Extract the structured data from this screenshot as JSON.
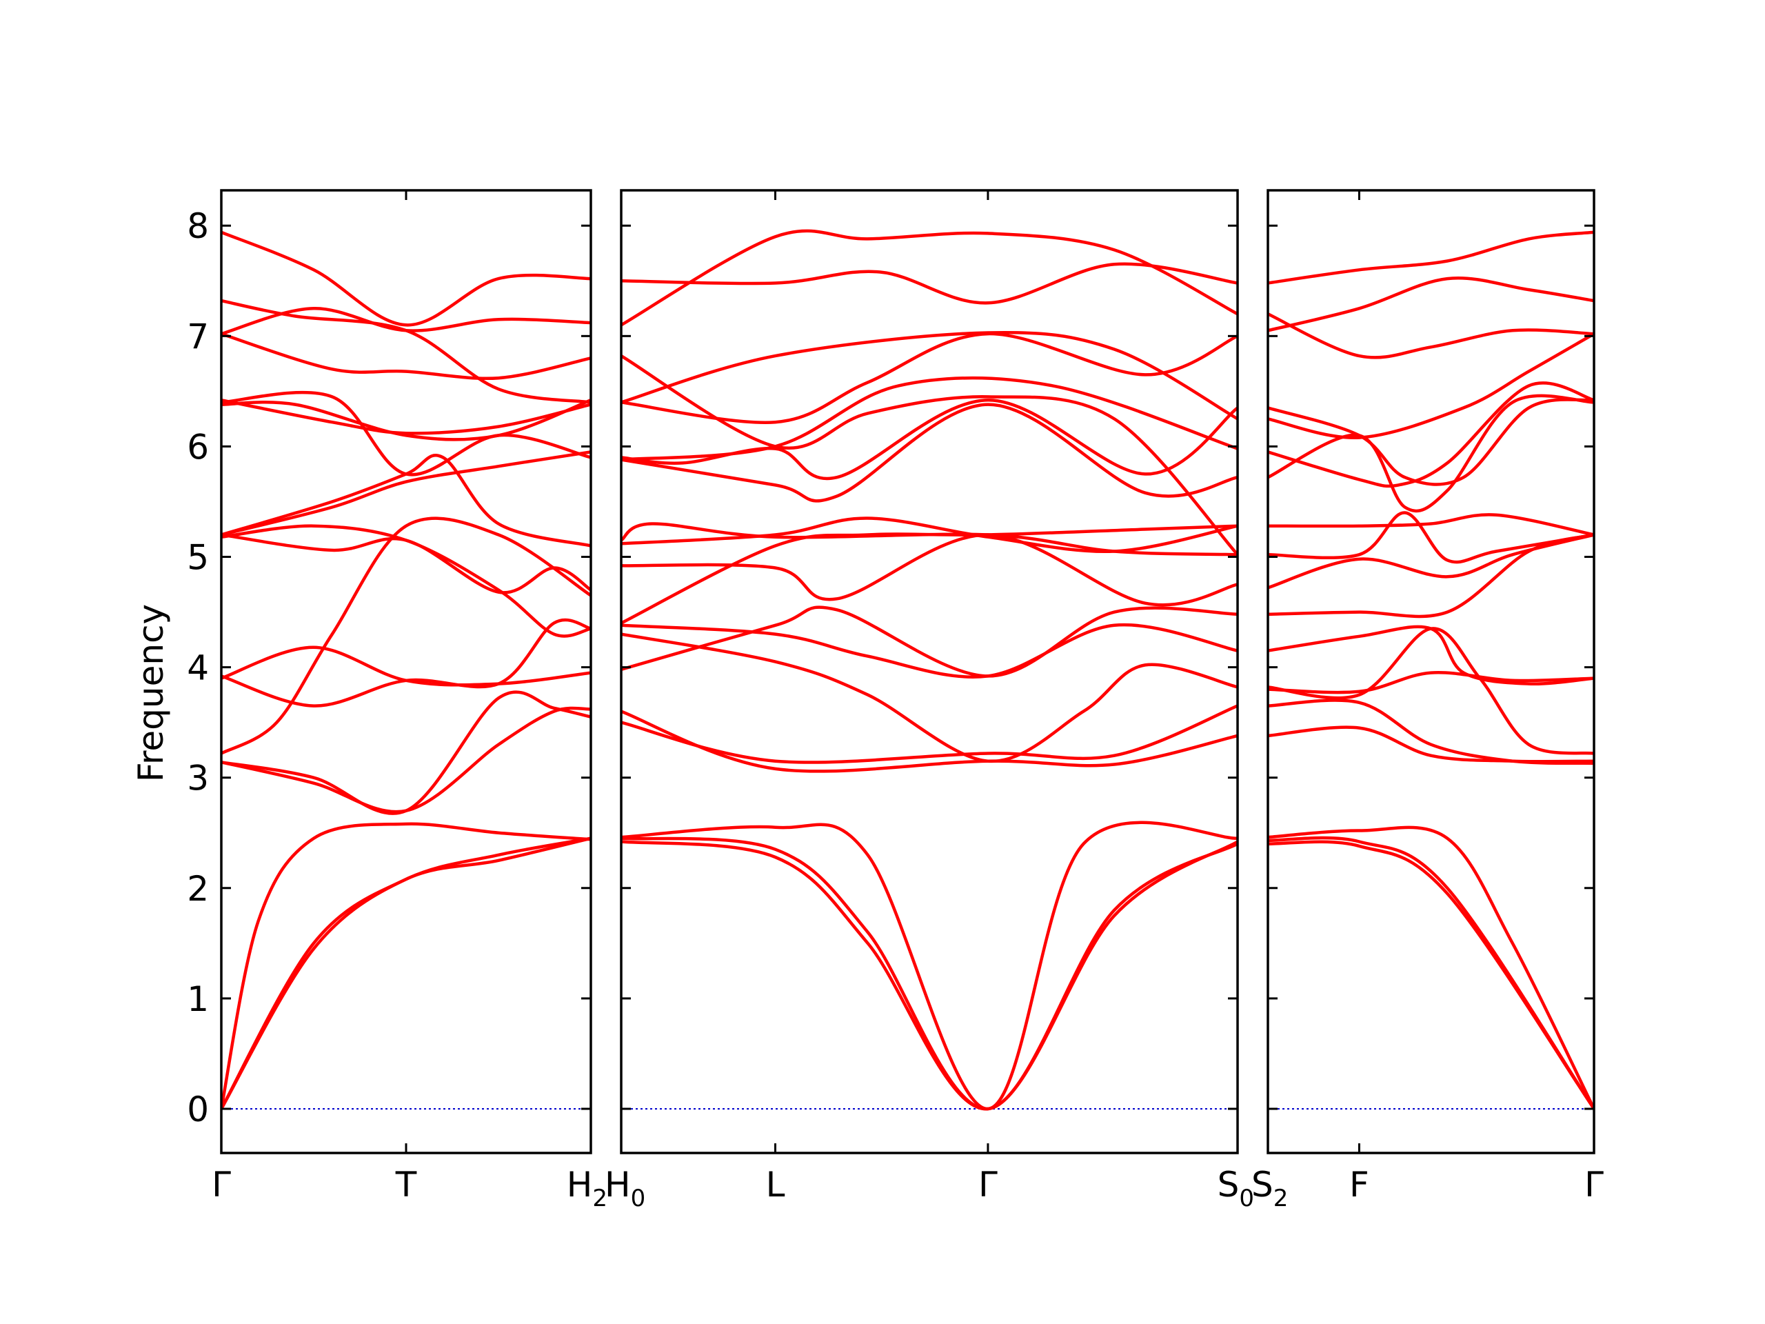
{
  "chart_data": {
    "type": "line",
    "ylabel": "Frequency",
    "ylim": [
      -0.4,
      8.32
    ],
    "yticks": [
      0,
      1,
      2,
      3,
      4,
      5,
      6,
      7,
      8
    ],
    "grid": false,
    "line_color": "#ff0000",
    "zero_line_color": "#0000cc",
    "panels": [
      {
        "xticks": [
          {
            "label": "Γ",
            "sub": "",
            "x": 0
          },
          {
            "label": "T",
            "sub": "",
            "x": 0.5
          },
          {
            "label": "H",
            "sub": "2",
            "x": 1
          }
        ],
        "bands": [
          {
            "x": [
              0,
              0.25,
              0.5,
              0.75,
              1
            ],
            "y": [
              0,
              1.5,
              2.08,
              2.3,
              2.45
            ]
          },
          {
            "x": [
              0,
              0.25,
              0.5,
              0.75,
              1
            ],
            "y": [
              0,
              1.45,
              2.08,
              2.25,
              2.45
            ]
          },
          {
            "x": [
              0,
              0.1,
              0.25,
              0.5,
              0.75,
              1
            ],
            "y": [
              0,
              1.7,
              2.45,
              2.58,
              2.5,
              2.44
            ]
          },
          {
            "x": [
              0,
              0.25,
              0.5,
              0.75,
              0.9,
              1
            ],
            "y": [
              3.14,
              3.0,
              2.7,
              3.72,
              3.63,
              3.55
            ]
          },
          {
            "x": [
              0,
              0.25,
              0.5,
              0.75,
              0.9,
              1
            ],
            "y": [
              3.14,
              2.95,
              2.7,
              3.3,
              3.6,
              3.62
            ]
          },
          {
            "x": [
              0,
              0.15,
              0.3,
              0.5,
              0.75,
              1
            ],
            "y": [
              3.22,
              3.5,
              4.3,
              5.28,
              5.2,
              4.65
            ]
          },
          {
            "x": [
              0,
              0.25,
              0.5,
              0.75,
              1
            ],
            "y": [
              3.9,
              4.18,
              3.88,
              3.85,
              3.95
            ]
          },
          {
            "x": [
              0,
              0.25,
              0.5,
              0.75,
              0.9,
              1
            ],
            "y": [
              3.92,
              3.65,
              3.88,
              3.85,
              4.4,
              4.35
            ]
          },
          {
            "x": [
              0,
              0.25,
              0.5,
              0.75,
              0.9,
              1
            ],
            "y": [
              5.18,
              5.28,
              5.15,
              4.7,
              4.3,
              4.35
            ]
          },
          {
            "x": [
              0,
              0.3,
              0.5,
              0.75,
              0.9,
              1
            ],
            "y": [
              5.2,
              5.06,
              5.15,
              4.68,
              4.9,
              4.7
            ]
          },
          {
            "x": [
              0,
              0.3,
              0.5,
              0.6,
              0.75,
              1
            ],
            "y": [
              5.2,
              5.5,
              5.75,
              5.9,
              5.3,
              5.1
            ]
          },
          {
            "x": [
              0,
              0.3,
              0.5,
              0.75,
              1
            ],
            "y": [
              5.2,
              5.45,
              5.68,
              5.82,
              5.95
            ]
          },
          {
            "x": [
              0,
              0.3,
              0.5,
              0.75,
              1
            ],
            "y": [
              6.4,
              6.45,
              5.75,
              6.1,
              5.9
            ]
          },
          {
            "x": [
              0,
              0.3,
              0.5,
              0.75,
              1
            ],
            "y": [
              6.42,
              6.22,
              6.12,
              6.18,
              6.38
            ]
          },
          {
            "x": [
              0,
              0.2,
              0.5,
              0.75,
              1
            ],
            "y": [
              6.38,
              6.38,
              6.1,
              6.1,
              6.42
            ]
          },
          {
            "x": [
              0,
              0.3,
              0.5,
              0.75,
              1
            ],
            "y": [
              7.02,
              6.7,
              6.68,
              6.62,
              6.8
            ]
          },
          {
            "x": [
              0,
              0.2,
              0.5,
              0.75,
              1
            ],
            "y": [
              7.32,
              7.18,
              7.05,
              6.52,
              6.4
            ]
          },
          {
            "x": [
              0,
              0.25,
              0.5,
              0.75,
              1
            ],
            "y": [
              7.02,
              7.25,
              7.05,
              7.15,
              7.12
            ]
          },
          {
            "x": [
              0,
              0.25,
              0.5,
              0.75,
              1
            ],
            "y": [
              7.94,
              7.6,
              7.1,
              7.52,
              7.52
            ]
          }
        ]
      },
      {
        "xticks": [
          {
            "label": "H",
            "sub": "0",
            "x": 0
          },
          {
            "label": "L",
            "sub": "",
            "x": 0.25
          },
          {
            "label": "Γ",
            "sub": "",
            "x": 0.595
          },
          {
            "label": "S",
            "sub": "0",
            "x": 1
          }
        ],
        "bands": [
          {
            "x": [
              0,
              0.25,
              0.4,
              0.595,
              0.8,
              1
            ],
            "y": [
              2.42,
              2.28,
              1.5,
              0,
              1.75,
              2.42
            ]
          },
          {
            "x": [
              0,
              0.25,
              0.4,
              0.595,
              0.8,
              1
            ],
            "y": [
              2.45,
              2.35,
              1.6,
              0,
              1.8,
              2.4
            ]
          },
          {
            "x": [
              0,
              0.25,
              0.4,
              0.595,
              0.75,
              1
            ],
            "y": [
              2.46,
              2.55,
              2.3,
              0,
              2.4,
              2.45
            ]
          },
          {
            "x": [
              0,
              0.25,
              0.595,
              0.8,
              1
            ],
            "y": [
              3.6,
              3.08,
              3.15,
              3.12,
              3.38
            ]
          },
          {
            "x": [
              0,
              0.25,
              0.595,
              0.8,
              1
            ],
            "y": [
              3.5,
              3.15,
              3.22,
              3.2,
              3.65
            ]
          },
          {
            "x": [
              0,
              0.25,
              0.4,
              0.595,
              0.75,
              0.85,
              1
            ],
            "y": [
              4.3,
              4.05,
              3.75,
              3.15,
              3.6,
              4.02,
              3.82
            ]
          },
          {
            "x": [
              0,
              0.25,
              0.35,
              0.595,
              0.8,
              1
            ],
            "y": [
              3.98,
              4.38,
              4.52,
              3.92,
              4.5,
              4.48
            ]
          },
          {
            "x": [
              0,
              0.25,
              0.4,
              0.595,
              0.8,
              1
            ],
            "y": [
              4.38,
              4.3,
              4.1,
              3.92,
              4.38,
              4.15
            ]
          },
          {
            "x": [
              0,
              0.25,
              0.35,
              0.595,
              0.85,
              1
            ],
            "y": [
              4.92,
              4.9,
              4.62,
              5.2,
              4.58,
              4.75
            ]
          },
          {
            "x": [
              0,
              0.25,
              0.4,
              0.595,
              0.85,
              1
            ],
            "y": [
              4.4,
              5.1,
              5.2,
              5.2,
              5.25,
              5.28
            ]
          },
          {
            "x": [
              0,
              0.05,
              0.25,
              0.595,
              0.8,
              1
            ],
            "y": [
              5.15,
              5.3,
              5.18,
              5.2,
              5.05,
              5.02
            ]
          },
          {
            "x": [
              0,
              0.25,
              0.4,
              0.595,
              0.8,
              1
            ],
            "y": [
              5.12,
              5.2,
              5.35,
              5.18,
              5.05,
              5.28
            ]
          },
          {
            "x": [
              0,
              0.25,
              0.35,
              0.595,
              0.85,
              1
            ],
            "y": [
              5.88,
              5.65,
              5.55,
              6.38,
              5.58,
              5.72
            ]
          },
          {
            "x": [
              0,
              0.1,
              0.25,
              0.35,
              0.595,
              0.85,
              1
            ],
            "y": [
              5.9,
              5.85,
              5.98,
              5.72,
              6.42,
              5.75,
              6.35
            ]
          },
          {
            "x": [
              0,
              0.25,
              0.45,
              0.7,
              1
            ],
            "y": [
              5.88,
              6.0,
              6.55,
              6.55,
              5.98
            ]
          },
          {
            "x": [
              0,
              0.25,
              0.4,
              0.595,
              0.85,
              1
            ],
            "y": [
              6.4,
              6.22,
              6.58,
              7.02,
              6.65,
              7.0
            ]
          },
          {
            "x": [
              0,
              0.25,
              0.595,
              0.8,
              1
            ],
            "y": [
              6.4,
              6.82,
              7.03,
              6.88,
              6.25
            ]
          },
          {
            "x": [
              0,
              0.25,
              0.4,
              0.595,
              0.8,
              1
            ],
            "y": [
              6.82,
              6.0,
              6.3,
              6.45,
              6.25,
              5.02
            ]
          },
          {
            "x": [
              0,
              0.25,
              0.42,
              0.595,
              0.8,
              1
            ],
            "y": [
              7.5,
              7.48,
              7.58,
              7.3,
              7.65,
              7.48
            ]
          },
          {
            "x": [
              0,
              0.25,
              0.4,
              0.595,
              0.8,
              1
            ],
            "y": [
              7.1,
              7.9,
              7.88,
              7.93,
              7.78,
              7.2
            ]
          }
        ]
      },
      {
        "xticks": [
          {
            "label": "S",
            "sub": "2",
            "x": 0
          },
          {
            "label": "F",
            "sub": "",
            "x": 0.28
          },
          {
            "label": "Γ",
            "sub": "",
            "x": 1
          }
        ],
        "bands": [
          {
            "x": [
              0,
              0.28,
              0.55,
              1
            ],
            "y": [
              2.4,
              2.38,
              1.95,
              0
            ]
          },
          {
            "x": [
              0,
              0.28,
              0.55,
              1
            ],
            "y": [
              2.43,
              2.42,
              2.0,
              0
            ]
          },
          {
            "x": [
              0,
              0.28,
              0.55,
              0.75,
              1
            ],
            "y": [
              2.46,
              2.52,
              2.45,
              1.5,
              0
            ]
          },
          {
            "x": [
              0,
              0.28,
              0.5,
              0.75,
              1
            ],
            "y": [
              3.38,
              3.45,
              3.2,
              3.15,
              3.15
            ]
          },
          {
            "x": [
              0,
              0.28,
              0.5,
              0.75,
              1
            ],
            "y": [
              3.65,
              3.68,
              3.3,
              3.15,
              3.13
            ]
          },
          {
            "x": [
              0,
              0.28,
              0.5,
              0.65,
              0.8,
              1
            ],
            "y": [
              3.82,
              3.75,
              4.35,
              3.9,
              3.3,
              3.22
            ]
          },
          {
            "x": [
              0,
              0.28,
              0.5,
              0.75,
              1
            ],
            "y": [
              3.8,
              3.78,
              3.95,
              3.88,
              3.9
            ]
          },
          {
            "x": [
              0,
              0.28,
              0.5,
              0.6,
              0.8,
              1
            ],
            "y": [
              4.15,
              4.28,
              4.35,
              3.95,
              3.85,
              3.9
            ]
          },
          {
            "x": [
              0,
              0.28,
              0.55,
              0.8,
              1
            ],
            "y": [
              4.48,
              4.5,
              4.5,
              5.05,
              5.2
            ]
          },
          {
            "x": [
              0,
              0.28,
              0.55,
              0.75,
              1
            ],
            "y": [
              4.72,
              4.98,
              4.82,
              5.02,
              5.2
            ]
          },
          {
            "x": [
              0,
              0.28,
              0.42,
              0.55,
              0.7,
              1
            ],
            "y": [
              5.02,
              5.02,
              5.4,
              4.97,
              5.05,
              5.2
            ]
          },
          {
            "x": [
              0,
              0.28,
              0.5,
              0.7,
              1
            ],
            "y": [
              5.28,
              5.28,
              5.3,
              5.38,
              5.2
            ]
          },
          {
            "x": [
              0,
              0.28,
              0.42,
              0.55,
              0.75,
              1
            ],
            "y": [
              5.72,
              6.1,
              5.45,
              5.6,
              6.4,
              6.4
            ]
          },
          {
            "x": [
              0,
              0.28,
              0.4,
              0.55,
              0.8,
              1
            ],
            "y": [
              5.95,
              5.7,
              5.65,
              5.85,
              6.55,
              6.42
            ]
          },
          {
            "x": [
              0,
              0.28,
              0.42,
              0.6,
              0.8,
              1
            ],
            "y": [
              6.35,
              6.1,
              5.72,
              5.72,
              6.35,
              6.42
            ]
          },
          {
            "x": [
              0,
              0.28,
              0.6,
              0.8,
              1
            ],
            "y": [
              6.25,
              6.08,
              6.35,
              6.68,
              7.02
            ]
          },
          {
            "x": [
              0,
              0.28,
              0.5,
              0.75,
              1
            ],
            "y": [
              7.2,
              6.82,
              6.9,
              7.05,
              7.02
            ]
          },
          {
            "x": [
              0,
              0.28,
              0.55,
              0.8,
              1
            ],
            "y": [
              7.05,
              7.25,
              7.52,
              7.42,
              7.32
            ]
          },
          {
            "x": [
              0,
              0.28,
              0.55,
              0.8,
              1
            ],
            "y": [
              7.48,
              7.6,
              7.68,
              7.88,
              7.94
            ]
          }
        ]
      }
    ]
  }
}
